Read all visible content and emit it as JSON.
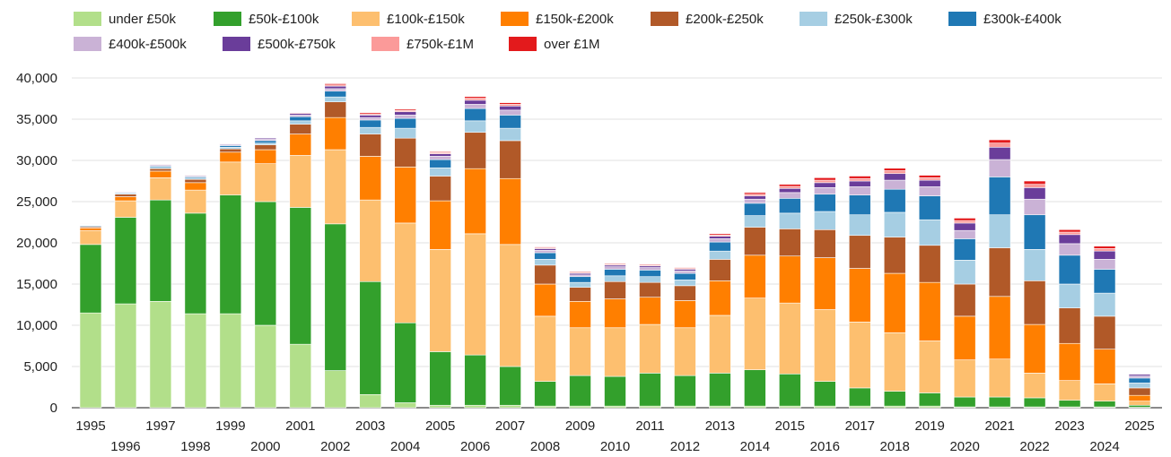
{
  "chart_data": {
    "type": "bar",
    "stacked": true,
    "title": "",
    "xlabel": "",
    "ylabel": "",
    "ylim": [
      0,
      40000
    ],
    "yticks": [
      0,
      5000,
      10000,
      15000,
      20000,
      25000,
      30000,
      35000,
      40000
    ],
    "ytick_labels": [
      "0",
      "5,000",
      "10,000",
      "15,000",
      "20,000",
      "25,000",
      "30,000",
      "35,000",
      "40,000"
    ],
    "grid": true,
    "legend_position": "top",
    "categories": [
      "1995",
      "1996",
      "1997",
      "1998",
      "1999",
      "2000",
      "2001",
      "2002",
      "2003",
      "2004",
      "2005",
      "2006",
      "2007",
      "2008",
      "2009",
      "2010",
      "2011",
      "2012",
      "2013",
      "2014",
      "2015",
      "2016",
      "2017",
      "2018",
      "2019",
      "2020",
      "2021",
      "2022",
      "2023",
      "2024",
      "2025"
    ],
    "series": [
      {
        "name": "under £50k",
        "color": "#b2df8a",
        "values": [
          11500,
          12600,
          12900,
          11400,
          11400,
          10000,
          7700,
          4500,
          1600,
          600,
          300,
          300,
          300,
          200,
          200,
          200,
          200,
          200,
          200,
          200,
          200,
          200,
          200,
          200,
          200,
          100,
          100,
          100,
          100,
          100,
          50
        ]
      },
      {
        "name": "£50k-£100k",
        "color": "#33a02c",
        "values": [
          8300,
          10500,
          12300,
          12200,
          14400,
          15000,
          16600,
          17800,
          13700,
          9700,
          6500,
          6100,
          4700,
          3000,
          3700,
          3600,
          4000,
          3700,
          4000,
          4400,
          3900,
          3000,
          2200,
          1800,
          1600,
          1200,
          1200,
          1100,
          800,
          700,
          250
        ]
      },
      {
        "name": "£100k-£150k",
        "color": "#fdbf6f",
        "values": [
          1700,
          2000,
          2700,
          2800,
          4000,
          4600,
          6300,
          9000,
          9900,
          12100,
          12400,
          14700,
          14800,
          7900,
          5800,
          5900,
          5900,
          5800,
          7000,
          8700,
          8600,
          8700,
          8000,
          7100,
          6300,
          4500,
          4600,
          3000,
          2400,
          2100,
          500
        ]
      },
      {
        "name": "£150k-£200k",
        "color": "#ff7f00",
        "values": [
          300,
          500,
          800,
          900,
          1200,
          1700,
          2600,
          3900,
          5300,
          6800,
          5900,
          7900,
          8000,
          3900,
          3200,
          3500,
          3300,
          3300,
          4200,
          5200,
          5700,
          6300,
          6500,
          7200,
          7100,
          5300,
          7600,
          5900,
          4500,
          4200,
          700
        ]
      },
      {
        "name": "£200k-£250k",
        "color": "#b15928",
        "values": [
          150,
          300,
          300,
          400,
          400,
          600,
          1200,
          1900,
          2700,
          3500,
          3000,
          4400,
          4600,
          2300,
          1700,
          2100,
          1800,
          1800,
          2600,
          3400,
          3300,
          3400,
          4000,
          4400,
          4500,
          3900,
          5900,
          5300,
          4300,
          4000,
          900
        ]
      },
      {
        "name": "£250k-£300k",
        "color": "#a6cee3",
        "values": [
          50,
          100,
          150,
          150,
          200,
          200,
          400,
          600,
          800,
          1200,
          1000,
          1400,
          1500,
          700,
          600,
          700,
          700,
          700,
          1000,
          1400,
          1900,
          2200,
          2500,
          3000,
          3100,
          2900,
          4000,
          3800,
          2900,
          2800,
          600
        ]
      },
      {
        "name": "£300k-£400k",
        "color": "#1f78b4",
        "values": [
          100,
          100,
          150,
          150,
          200,
          300,
          500,
          700,
          900,
          1200,
          1000,
          1500,
          1600,
          800,
          700,
          800,
          800,
          800,
          1100,
          1500,
          1800,
          2100,
          2400,
          2800,
          2900,
          2600,
          4600,
          4200,
          3500,
          2900,
          600
        ]
      },
      {
        "name": "£400k-£500k",
        "color": "#cab2d6",
        "values": [
          50,
          100,
          100,
          100,
          100,
          150,
          200,
          300,
          300,
          400,
          400,
          500,
          600,
          300,
          200,
          300,
          300,
          300,
          400,
          500,
          700,
          800,
          1000,
          1100,
          1100,
          1000,
          2100,
          1900,
          1400,
          1200,
          250
        ]
      },
      {
        "name": "£500k-£750k",
        "color": "#6a3d9a",
        "values": [
          50,
          50,
          100,
          100,
          100,
          150,
          200,
          300,
          300,
          400,
          300,
          500,
          500,
          200,
          200,
          200,
          200,
          200,
          300,
          400,
          500,
          600,
          700,
          800,
          800,
          900,
          1500,
          1400,
          1100,
          1000,
          200
        ]
      },
      {
        "name": "£750k-£1M",
        "color": "#fb9a99",
        "values": [
          50,
          50,
          50,
          50,
          50,
          50,
          100,
          150,
          150,
          150,
          150,
          250,
          200,
          100,
          100,
          100,
          100,
          100,
          150,
          200,
          250,
          300,
          300,
          350,
          300,
          300,
          500,
          400,
          300,
          300,
          70
        ]
      },
      {
        "name": "over £1M",
        "color": "#e31a1c",
        "values": [
          50,
          50,
          50,
          50,
          50,
          50,
          50,
          150,
          150,
          150,
          100,
          200,
          200,
          100,
          100,
          100,
          100,
          100,
          150,
          200,
          250,
          300,
          300,
          300,
          300,
          300,
          400,
          400,
          300,
          300,
          50
        ]
      }
    ]
  }
}
